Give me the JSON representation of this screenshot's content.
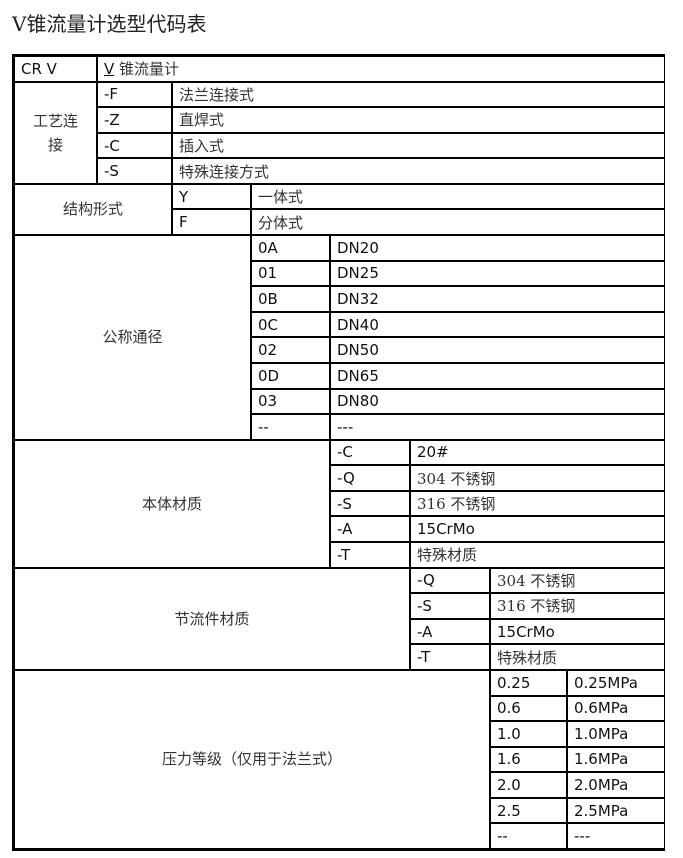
{
  "title": "V锥流量计选型代码表",
  "header": {
    "code": "CR V",
    "desc_prefix": "V",
    "desc": "锥流量计"
  },
  "sections": [
    {
      "label": "工艺连接",
      "rows": [
        [
          "-F",
          "法兰连接式"
        ],
        [
          "-Z",
          "直焊式"
        ],
        [
          "-C",
          "插入式"
        ],
        [
          "-S",
          "特殊连接方式"
        ]
      ]
    },
    {
      "label": "结构形式",
      "rows": [
        [
          "Y",
          "一体式"
        ],
        [
          "F",
          "分体式"
        ]
      ]
    },
    {
      "label": "公称通径",
      "rows": [
        [
          "0A",
          "DN20"
        ],
        [
          "01",
          "DN25"
        ],
        [
          "0B",
          "DN32"
        ],
        [
          "0C",
          "DN40"
        ],
        [
          "02",
          "DN50"
        ],
        [
          "0D",
          "DN65"
        ],
        [
          "03",
          "DN80"
        ],
        [
          "--",
          "---"
        ]
      ]
    },
    {
      "label": "本体材质",
      "rows": [
        [
          "-C",
          "20#"
        ],
        [
          "-Q",
          "304 不锈钢"
        ],
        [
          "-S",
          "316 不锈钢"
        ],
        [
          "-A",
          "15CrMo"
        ],
        [
          "-T",
          "特殊材质"
        ]
      ]
    },
    {
      "label": "节流件材质",
      "rows": [
        [
          "-Q",
          "304 不锈钢"
        ],
        [
          "-S",
          "316 不锈钢"
        ],
        [
          "-A",
          "15CrMo"
        ],
        [
          "-T",
          "特殊材质"
        ]
      ]
    },
    {
      "label": "压力等级（仅用于法兰式）",
      "rows": [
        [
          "0.25",
          "0.25MPa"
        ],
        [
          "0.6",
          "0.6MPa"
        ],
        [
          "1.0",
          "1.0MPa"
        ],
        [
          "1.6",
          "1.6MPa"
        ],
        [
          "2.0",
          "2.0MPa"
        ],
        [
          "2.5",
          "2.5MPa"
        ],
        [
          "--",
          "---"
        ]
      ]
    }
  ]
}
